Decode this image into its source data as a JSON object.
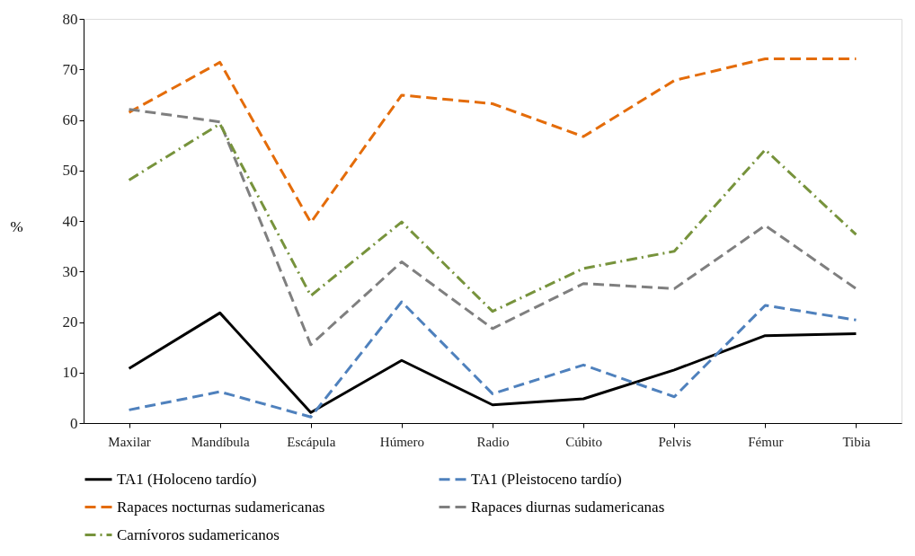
{
  "chart_data": {
    "type": "line",
    "ylabel": "%",
    "categories": [
      "Maxilar",
      "Mandíbula",
      "Escápula",
      "Húmero",
      "Radio",
      "Cúbito",
      "Pelvis",
      "Fémur",
      "Tibia"
    ],
    "ylim": [
      0,
      80
    ],
    "yticks": [
      0,
      10,
      20,
      30,
      40,
      50,
      60,
      70,
      80
    ],
    "grid": false,
    "legend": "bottom",
    "marker": "none",
    "series": [
      {
        "name": "TA1 (Holoceno tardío)",
        "color": "#000000",
        "line_style": "solid",
        "values": [
          10.8,
          21.8,
          2.1,
          12.4,
          3.6,
          4.8,
          10.5,
          17.3,
          17.7
        ]
      },
      {
        "name": "TA1 (Pleistoceno tardío)",
        "color": "#4f81bd",
        "line_style": "dashed",
        "values": [
          2.6,
          6.2,
          1.2,
          24,
          5.8,
          11.5,
          5.2,
          23.3,
          20.4
        ]
      },
      {
        "name": "Rapaces nocturnas sudamericanas",
        "color": "#e46c0a",
        "line_style": "dashed",
        "values": [
          61.5,
          71.4,
          39.7,
          64.9,
          63.2,
          56.7,
          67.8,
          72.1,
          72.1
        ]
      },
      {
        "name": "Rapaces diurnas sudamericanas",
        "color": "#7f7f7f",
        "line_style": "dashed",
        "values": [
          62.1,
          59.6,
          15.5,
          31.9,
          18.7,
          27.6,
          26.6,
          39.1,
          26.6
        ]
      },
      {
        "name": "Carnívoros sudamericanos",
        "color": "#77933c",
        "line_style": "dashdot",
        "values": [
          48.1,
          59.2,
          25.2,
          39.8,
          22.1,
          30.6,
          34,
          54.1,
          37.3
        ]
      }
    ]
  }
}
